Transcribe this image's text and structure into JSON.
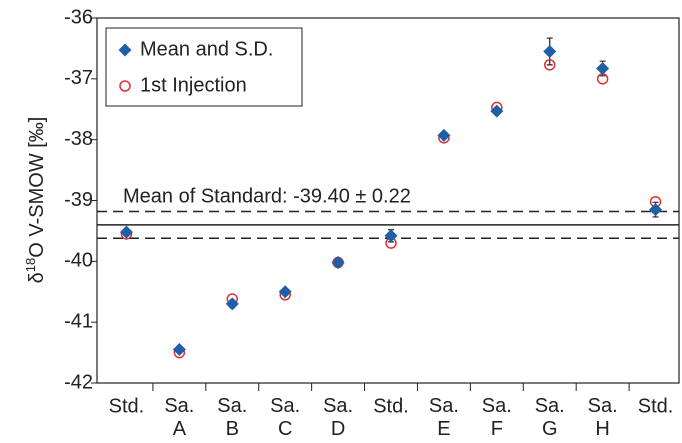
{
  "chart_data": {
    "type": "scatter",
    "ylabel": [
      "δ",
      "18",
      "O V-SMOW [‰]"
    ],
    "categories": [
      "Std.",
      "Sa. A",
      "Sa. B",
      "Sa. C",
      "Sa. D",
      "Std.",
      "Sa. E",
      "Sa. F",
      "Sa. G",
      "Sa. H",
      "Std."
    ],
    "ylim": [
      -42,
      -36
    ],
    "yticks": [
      -42,
      -41,
      -40,
      -39,
      -38,
      -37,
      -36
    ],
    "series": [
      {
        "name": "Mean and S.D.",
        "color": "#1f5fa8",
        "marker": "diamond",
        "values": [
          -39.52,
          -41.45,
          -40.7,
          -40.5,
          -40.02,
          -39.58,
          -37.93,
          -37.53,
          -36.55,
          -36.83,
          -39.15
        ],
        "errors": [
          0.05,
          0.03,
          0.06,
          0.04,
          0.02,
          0.1,
          0.03,
          0.04,
          0.22,
          0.12,
          0.12
        ]
      },
      {
        "name": "1st Injection",
        "color": "#e03030",
        "marker": "circle",
        "values": [
          -39.55,
          -41.5,
          -40.62,
          -40.55,
          -40.02,
          -39.7,
          -37.97,
          -37.47,
          -36.77,
          -37.0,
          -39.02
        ]
      }
    ],
    "reference_lines": [
      {
        "value": -39.4,
        "style": "solid"
      },
      {
        "value": -39.18,
        "style": "dashed"
      },
      {
        "value": -39.62,
        "style": "dashed"
      }
    ],
    "annotation": "Mean of Standard: -39.40 ± 0.22"
  }
}
